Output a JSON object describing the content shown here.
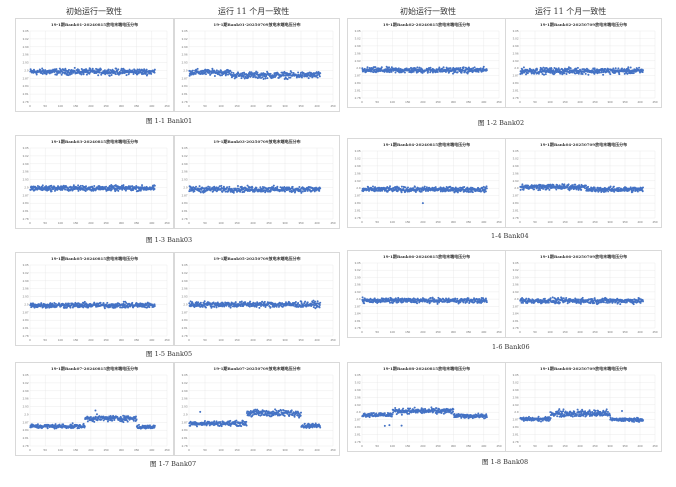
{
  "headers": {
    "initial": "初始运行一致性",
    "after": "运行 11 个月一致性"
  },
  "captions": [
    "图 1-1 Bank01",
    "图 1-2 Bank02",
    "图 1-3 Bank03",
    "1-4 Bank04",
    "图 1-5 Bank05",
    "1-6 Bank06",
    "图 1-7 Bank07",
    "图 1-8 Bank08"
  ],
  "colors": {
    "point": "#4472c4",
    "grid": "#e6e6e6"
  },
  "chart_data": [
    {
      "type": "scatter",
      "title": "19-1期Bank01-20240815放电末端电压分布",
      "n": 410,
      "segments": [
        [
          0,
          410,
          2.895,
          0.011
        ]
      ],
      "outliers": []
    },
    {
      "type": "scatter",
      "title": "19-1期Bank01-20250709放电末端电压分布",
      "n": 410,
      "segments": [
        [
          0,
          130,
          2.893,
          0.011
        ],
        [
          130,
          410,
          2.882,
          0.012
        ]
      ],
      "outliers": []
    },
    {
      "type": "scatter",
      "title": "19-1期Bank02-20240815放电末端电压分布",
      "n": 410,
      "segments": [
        [
          0,
          410,
          2.892,
          0.011
        ]
      ],
      "outliers": []
    },
    {
      "type": "scatter",
      "title": "19-1期Bank02-20250709放电末端电压分布",
      "n": 410,
      "segments": [
        [
          0,
          410,
          2.889,
          0.012
        ]
      ],
      "outliers": []
    },
    {
      "type": "scatter",
      "title": "19-1期Bank03-20240815放电末端电压分布",
      "n": 410,
      "segments": [
        [
          0,
          410,
          2.897,
          0.01
        ]
      ],
      "outliers": []
    },
    {
      "type": "scatter",
      "title": "19-1期Bank03-20250709放电末端电压分布",
      "n": 410,
      "segments": [
        [
          0,
          410,
          2.893,
          0.011
        ]
      ],
      "outliers": []
    },
    {
      "type": "scatter",
      "title": "19-1期Bank04-20240815放电末端电压分布",
      "n": 410,
      "segments": [
        [
          0,
          410,
          2.895,
          0.01
        ]
      ],
      "outliers": [
        [
          200,
          2.84
        ]
      ]
    },
    {
      "type": "scatter",
      "title": "19-1期Bank04-20250709放电末端电压分布",
      "n": 410,
      "segments": [
        [
          0,
          220,
          2.905,
          0.011
        ],
        [
          220,
          410,
          2.895,
          0.01
        ]
      ],
      "outliers": []
    },
    {
      "type": "scatter",
      "title": "19-1期Bank05-20240815放电末端电压分布",
      "n": 410,
      "segments": [
        [
          0,
          410,
          2.897,
          0.01
        ]
      ],
      "outliers": []
    },
    {
      "type": "scatter",
      "title": "19-1期Bank05-20250709放电末端电压分布",
      "n": 410,
      "segments": [
        [
          0,
          410,
          2.9,
          0.011
        ]
      ],
      "outliers": []
    },
    {
      "type": "scatter",
      "title": "19-1期Bank06-20240815放电末端电压分布",
      "n": 410,
      "segments": [
        [
          0,
          410,
          2.894,
          0.01
        ]
      ],
      "outliers": []
    },
    {
      "type": "scatter",
      "title": "19-1期Bank06-20250709放电末端电压分布",
      "n": 410,
      "segments": [
        [
          0,
          410,
          2.893,
          0.011
        ]
      ],
      "outliers": []
    },
    {
      "type": "scatter",
      "title": "19-1期Bank07-20240815放电末端电压分布",
      "n": 410,
      "segments": [
        [
          0,
          180,
          2.855,
          0.008
        ],
        [
          180,
          350,
          2.885,
          0.011
        ],
        [
          350,
          410,
          2.852,
          0.007
        ]
      ],
      "outliers": [
        [
          215,
          2.915
        ]
      ]
    },
    {
      "type": "scatter",
      "title": "19-1期Bank07-20250709放电末端电压分布",
      "n": 410,
      "segments": [
        [
          0,
          180,
          2.866,
          0.009
        ],
        [
          180,
          350,
          2.905,
          0.013
        ],
        [
          350,
          410,
          2.857,
          0.008
        ]
      ],
      "outliers": [
        [
          35,
          2.91
        ]
      ]
    },
    {
      "type": "scatter",
      "title": "19-1期Bank08-20240815放电末端电压分布",
      "n": 410,
      "segments": [
        [
          0,
          100,
          2.89,
          0.009
        ],
        [
          100,
          300,
          2.905,
          0.011
        ],
        [
          300,
          410,
          2.885,
          0.008
        ]
      ],
      "outliers": [
        [
          75,
          2.845
        ],
        [
          90,
          2.848
        ],
        [
          130,
          2.846
        ]
      ]
    },
    {
      "type": "scatter",
      "title": "19-1期Bank08-20250709放电末端电压分布",
      "n": 410,
      "segments": [
        [
          0,
          100,
          2.872,
          0.008
        ],
        [
          100,
          300,
          2.895,
          0.014
        ],
        [
          300,
          410,
          2.87,
          0.007
        ]
      ],
      "outliers": [
        [
          340,
          2.905
        ]
      ]
    }
  ],
  "axes": {
    "yticks": [
      "3.05",
      "3.02",
      "2.99",
      "2.96",
      "2.93",
      "2.9",
      "2.87",
      "2.84",
      "2.81",
      "2.78"
    ],
    "ylim": [
      2.78,
      3.05
    ],
    "xticks": [
      "0",
      "50",
      "100",
      "150",
      "200",
      "250",
      "300",
      "350",
      "400",
      "450"
    ],
    "xlim": [
      0,
      450
    ]
  }
}
